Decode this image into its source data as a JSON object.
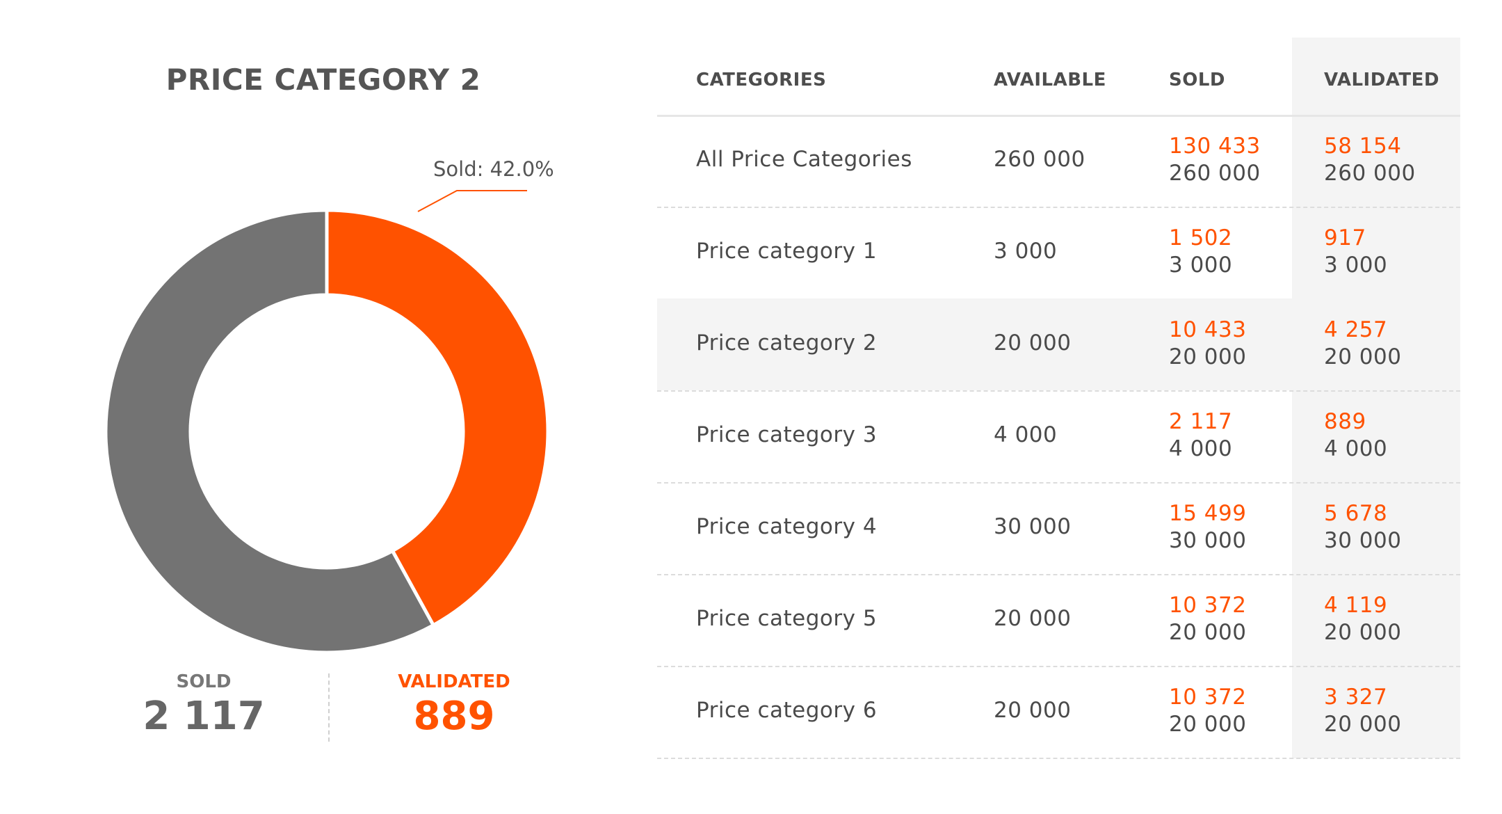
{
  "title": "PRICE CATEGORY 2",
  "colors": {
    "accent": "#ff5200",
    "sold": "#737373",
    "highlight_bg": "#f4f4f4"
  },
  "donut": {
    "callout": "Sold: 42.0%"
  },
  "chart_data": {
    "type": "pie",
    "title": "PRICE CATEGORY 2",
    "labels": [
      "",
      "Sold"
    ],
    "values": [
      58.0,
      42.0
    ],
    "colors": [
      "#737373",
      "#ff5200"
    ]
  },
  "summary": {
    "sold_label": "SOLD",
    "sold_value": "2 117",
    "validated_label": "VALIDATED",
    "validated_value": "889"
  },
  "table": {
    "headers": [
      "CATEGORIES",
      "AVAILABLE",
      "SOLD",
      "VALIDATED"
    ],
    "rows": [
      {
        "name": "All Price Categories",
        "available": "260 000",
        "sold": "130 433",
        "sold_of": "260 000",
        "validated": "58 154",
        "validated_of": "260 000"
      },
      {
        "name": "Price category 1",
        "available": "3 000",
        "sold": "1 502",
        "sold_of": "3 000",
        "validated": "917",
        "validated_of": "3 000"
      },
      {
        "name": "Price category 2",
        "available": "20 000",
        "sold": "10 433",
        "sold_of": "20 000",
        "validated": "4 257",
        "validated_of": "20 000"
      },
      {
        "name": "Price category 3",
        "available": "4 000",
        "sold": "2 117",
        "sold_of": "4 000",
        "validated": "889",
        "validated_of": "4 000"
      },
      {
        "name": "Price category 4",
        "available": "30 000",
        "sold": "15 499",
        "sold_of": "30 000",
        "validated": "5 678",
        "validated_of": "30 000"
      },
      {
        "name": "Price category 5",
        "available": "20 000",
        "sold": "10 372",
        "sold_of": "20 000",
        "validated": "4 119",
        "validated_of": "20 000"
      },
      {
        "name": "Price category 6",
        "available": "20 000",
        "sold": "10 372",
        "sold_of": "20 000",
        "validated": "3 327",
        "validated_of": "20 000"
      }
    ]
  }
}
